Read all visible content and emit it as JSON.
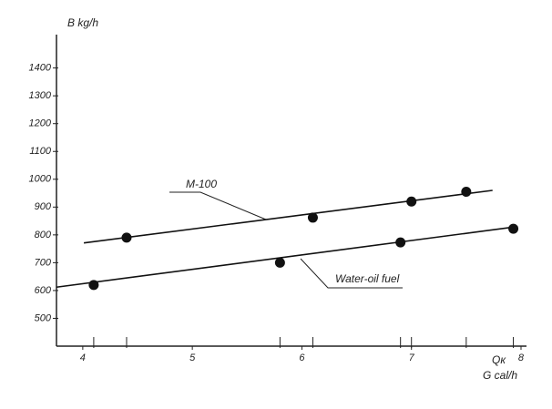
{
  "chart_data": {
    "type": "scatter",
    "y_label": "B kg/h",
    "x_label": [
      "Qк",
      "G cal/h"
    ],
    "xlim": [
      3.76,
      8.05
    ],
    "ylim": [
      400,
      1520
    ],
    "xticks": [
      4,
      5,
      6,
      7,
      8
    ],
    "yticks": [
      500,
      600,
      700,
      800,
      900,
      1000,
      1100,
      1200,
      1300,
      1400
    ],
    "color": "#111111",
    "series": [
      {
        "name": "M-100",
        "x": [
          4.4,
          6.1,
          7.0,
          7.5
        ],
        "values": [
          790,
          862,
          920,
          955
        ],
        "trend": {
          "x": [
            4.01,
            7.74
          ],
          "y": [
            771,
            960
          ]
        }
      },
      {
        "name": "Water-oil fuel",
        "x": [
          4.1,
          5.8,
          6.9,
          7.93
        ],
        "values": [
          620,
          700,
          773,
          822
        ],
        "trend": {
          "x": [
            3.76,
            7.97
          ],
          "y": [
            612,
            830
          ]
        }
      }
    ]
  }
}
